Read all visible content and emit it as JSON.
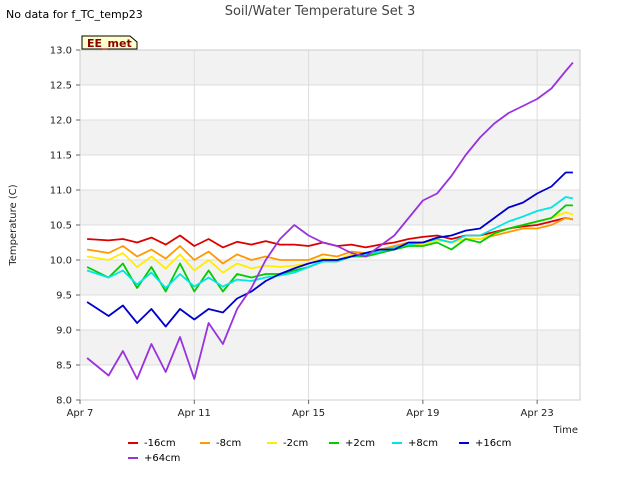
{
  "status_text": "No data for f_TC_temp23",
  "badge_label": "EE_met",
  "colors": {
    "band": "#f2f2f2",
    "grid": "#dddddd",
    "badge_fill": "#ffffcc"
  },
  "chart_data": {
    "type": "line",
    "title": "Soil/Water Temperature Set 3",
    "xlabel": "Time",
    "ylabel": "Temperature (C)",
    "xlim": [
      "2024-04-07",
      "2024-04-24T12:00"
    ],
    "ylim": [
      8.0,
      13.0
    ],
    "x_ticks": [
      "Apr 7",
      "Apr 11",
      "Apr 15",
      "Apr 19",
      "Apr 23"
    ],
    "y_ticks": [
      "8.0",
      "8.5",
      "9.0",
      "9.5",
      "10.0",
      "10.5",
      "11.0",
      "11.5",
      "12.0",
      "12.5",
      "13.0"
    ],
    "grid": true,
    "legend": "bottom",
    "x_dates": [
      "2024-04-07T06:00",
      "2024-04-08",
      "2024-04-08T12:00",
      "2024-04-09",
      "2024-04-09T12:00",
      "2024-04-10",
      "2024-04-10T12:00",
      "2024-04-11",
      "2024-04-11T12:00",
      "2024-04-12",
      "2024-04-12T12:00",
      "2024-04-13",
      "2024-04-13T12:00",
      "2024-04-14",
      "2024-04-14T12:00",
      "2024-04-15",
      "2024-04-15T12:00",
      "2024-04-16",
      "2024-04-16T12:00",
      "2024-04-17",
      "2024-04-17T12:00",
      "2024-04-18",
      "2024-04-18T12:00",
      "2024-04-19",
      "2024-04-19T12:00",
      "2024-04-20",
      "2024-04-20T12:00",
      "2024-04-21",
      "2024-04-21T12:00",
      "2024-04-22",
      "2024-04-22T12:00",
      "2024-04-23",
      "2024-04-23T12:00",
      "2024-04-24",
      "2024-04-24T06:00"
    ],
    "series": [
      {
        "name": "-16cm",
        "color": "#dd0000",
        "values": [
          10.3,
          10.28,
          10.3,
          10.25,
          10.32,
          10.22,
          10.35,
          10.2,
          10.3,
          10.18,
          10.26,
          10.22,
          10.27,
          10.22,
          10.22,
          10.2,
          10.25,
          10.2,
          10.22,
          10.18,
          10.22,
          10.25,
          10.3,
          10.33,
          10.35,
          10.3,
          10.35,
          10.35,
          10.4,
          10.45,
          10.48,
          10.5,
          10.55,
          10.6,
          10.58
        ]
      },
      {
        "name": "-8cm",
        "color": "#ff9900",
        "values": [
          10.15,
          10.1,
          10.2,
          10.05,
          10.15,
          10.02,
          10.2,
          10.0,
          10.12,
          9.95,
          10.08,
          10.0,
          10.05,
          10.0,
          10.0,
          10.0,
          10.08,
          10.05,
          10.12,
          10.1,
          10.15,
          10.2,
          10.25,
          10.25,
          10.3,
          10.25,
          10.3,
          10.3,
          10.35,
          10.4,
          10.45,
          10.45,
          10.5,
          10.6,
          10.58
        ]
      },
      {
        "name": "-2cm",
        "color": "#ffee00",
        "values": [
          10.05,
          10.0,
          10.1,
          9.9,
          10.05,
          9.88,
          10.08,
          9.85,
          10.0,
          9.82,
          9.95,
          9.88,
          9.92,
          9.9,
          9.92,
          9.95,
          10.02,
          10.0,
          10.08,
          10.08,
          10.12,
          10.18,
          10.22,
          10.22,
          10.28,
          10.25,
          10.3,
          10.3,
          10.38,
          10.45,
          10.5,
          10.55,
          10.6,
          10.68,
          10.65
        ]
      },
      {
        "name": "+2cm",
        "color": "#00cc00",
        "values": [
          9.9,
          9.75,
          9.95,
          9.6,
          9.9,
          9.55,
          9.95,
          9.55,
          9.85,
          9.55,
          9.8,
          9.75,
          9.8,
          9.8,
          9.85,
          9.9,
          9.98,
          9.98,
          10.05,
          10.05,
          10.1,
          10.15,
          10.2,
          10.2,
          10.25,
          10.15,
          10.3,
          10.25,
          10.38,
          10.45,
          10.5,
          10.55,
          10.6,
          10.78,
          10.78
        ]
      },
      {
        "name": "+8cm",
        "color": "#00e5e5",
        "values": [
          9.85,
          9.75,
          9.85,
          9.65,
          9.82,
          9.6,
          9.8,
          9.62,
          9.75,
          9.62,
          9.72,
          9.7,
          9.75,
          9.78,
          9.82,
          9.9,
          9.98,
          9.98,
          10.05,
          10.08,
          10.12,
          10.18,
          10.22,
          10.25,
          10.3,
          10.25,
          10.35,
          10.35,
          10.45,
          10.55,
          10.62,
          10.7,
          10.75,
          10.9,
          10.88
        ]
      },
      {
        "name": "+16cm",
        "color": "#0000cc",
        "values": [
          9.4,
          9.2,
          9.35,
          9.1,
          9.3,
          9.05,
          9.3,
          9.15,
          9.3,
          9.25,
          9.45,
          9.55,
          9.7,
          9.8,
          9.88,
          9.95,
          10.0,
          10.0,
          10.05,
          10.1,
          10.15,
          10.15,
          10.25,
          10.25,
          10.32,
          10.35,
          10.42,
          10.45,
          10.6,
          10.75,
          10.82,
          10.95,
          11.05,
          11.25,
          11.25
        ]
      },
      {
        "name": "+64cm",
        "color": "#9933dd",
        "values": [
          8.6,
          8.35,
          8.7,
          8.3,
          8.8,
          8.4,
          8.9,
          8.3,
          9.1,
          8.8,
          9.3,
          9.6,
          10.0,
          10.3,
          10.5,
          10.35,
          10.25,
          10.2,
          10.1,
          10.05,
          10.2,
          10.35,
          10.6,
          10.85,
          10.95,
          11.2,
          11.5,
          11.75,
          11.95,
          12.1,
          12.2,
          12.3,
          12.45,
          12.7,
          12.82
        ]
      }
    ]
  }
}
